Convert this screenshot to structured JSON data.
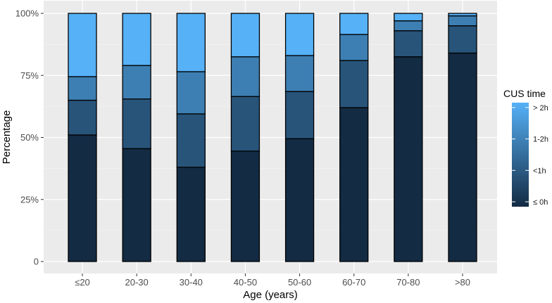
{
  "chart_data": {
    "type": "bar",
    "stacked": true,
    "xlabel": "Age (years)",
    "ylabel": "Percentage",
    "ylim": [
      0,
      1
    ],
    "y_ticks": [
      {
        "value": 0,
        "label": "0"
      },
      {
        "value": 0.25,
        "label": "25%"
      },
      {
        "value": 0.5,
        "label": "50%"
      },
      {
        "value": 0.75,
        "label": "75%"
      },
      {
        "value": 1,
        "label": "100%"
      }
    ],
    "categories": [
      "≤20",
      "20-30",
      "30-40",
      "40-50",
      "50-60",
      "60-70",
      "70-80",
      ">80"
    ],
    "series": [
      {
        "name": "≤ 0h",
        "color": "#132b43",
        "values": [
          0.51,
          0.455,
          0.38,
          0.445,
          0.495,
          0.62,
          0.825,
          0.84
        ]
      },
      {
        "name": "<1h",
        "color": "#28547a",
        "values": [
          0.14,
          0.2,
          0.215,
          0.22,
          0.19,
          0.19,
          0.105,
          0.11
        ]
      },
      {
        "name": "1-2h",
        "color": "#3d7fb3",
        "values": [
          0.095,
          0.135,
          0.17,
          0.16,
          0.145,
          0.105,
          0.04,
          0.04
        ]
      },
      {
        "name": "> 2h",
        "color": "#56b1f7",
        "values": [
          0.255,
          0.21,
          0.235,
          0.175,
          0.17,
          0.085,
          0.03,
          0.01
        ]
      }
    ],
    "grid": true,
    "legend": {
      "title": "CUS time",
      "position": "right",
      "labels": [
        "> 2h",
        "1-2h",
        "<1h",
        "≤ 0h"
      ],
      "gradient": [
        "#132b43",
        "#56b1f7"
      ]
    },
    "panel_background": "#ebebeb"
  }
}
